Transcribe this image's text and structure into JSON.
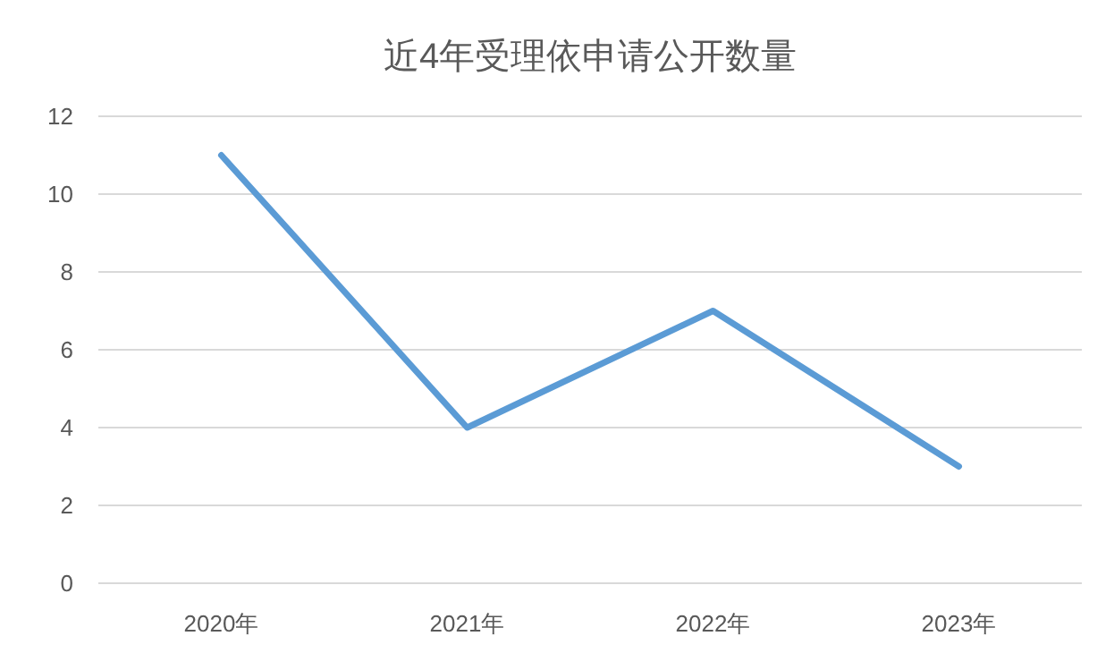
{
  "chart_data": {
    "type": "line",
    "title": "近4年受理依申请公开数量",
    "categories": [
      "2020年",
      "2021年",
      "2022年",
      "2023年"
    ],
    "values": [
      11,
      4,
      7,
      3
    ],
    "color": "#5b9bd5",
    "ylim": [
      0,
      12
    ],
    "yticks": [
      0,
      2,
      4,
      6,
      8,
      10,
      12
    ],
    "grid": "y"
  }
}
